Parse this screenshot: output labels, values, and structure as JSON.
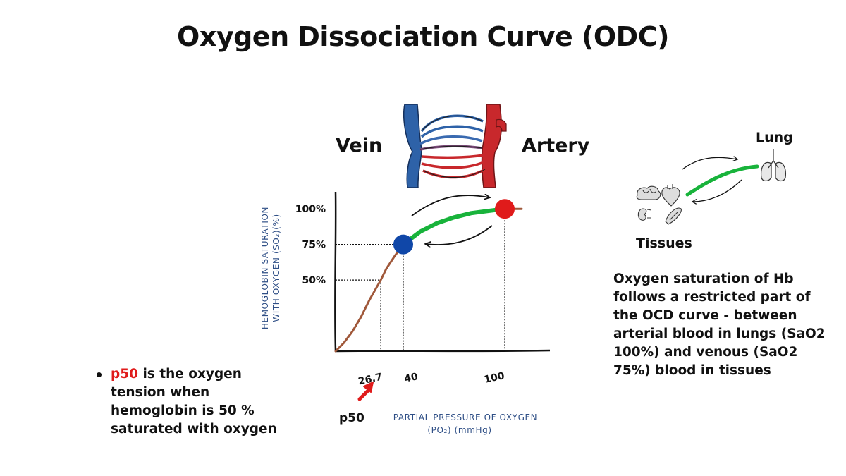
{
  "title": "Oxygen Dissociation Curve (ODC)",
  "labels": {
    "vein": "Vein",
    "artery": "Artery",
    "lung": "Lung",
    "tissues": "Tissues",
    "p50": "p50"
  },
  "explanation": "Oxygen saturation of Hb follows a restricted part of the OCD curve - between arterial blood in lungs  (SaO2 100%) and venous (SaO2 75%) blood in tissues",
  "bullet": {
    "highlight": "p50",
    "text": " is the oxygen tension when hemoglobin is 50 % saturated with oxygen"
  },
  "colors": {
    "curve": "#a0583a",
    "restricted_segment": "#18b33b",
    "venous_point": "#1047a8",
    "arterial_point": "#e01b1b",
    "axis_title": "#2f4f86",
    "p50_arrow": "#e01b1b",
    "vein_blue": "#2e62a8",
    "artery_red": "#c8282c"
  },
  "chart_data": {
    "type": "line",
    "title": "",
    "xlabel_line1": "PARTIAL PRESSURE OF OXYGEN",
    "xlabel_line2": "(PO₂) (mmHg)",
    "ylabel_line1": "HEMOGLOBIN SATURATION",
    "ylabel_line2": "WITH OXYGEN (SO₂)(%)",
    "x_ticks": [
      {
        "value": 26.7,
        "label": "26.7"
      },
      {
        "value": 40,
        "label": "40"
      },
      {
        "value": 100,
        "label": "100"
      }
    ],
    "y_ticks": [
      {
        "value": 50,
        "label": "50%"
      },
      {
        "value": 75,
        "label": "75%"
      },
      {
        "value": 100,
        "label": "100%"
      }
    ],
    "xlim": [
      0,
      125
    ],
    "ylim": [
      0,
      112
    ],
    "series": [
      {
        "x": [
          0,
          5,
          10,
          15,
          20,
          26.7,
          30,
          35,
          40,
          50,
          60,
          70,
          80,
          90,
          100,
          110
        ],
        "y": [
          0,
          6,
          14,
          24,
          36,
          50,
          58,
          67,
          75,
          84,
          90,
          94,
          97,
          98.5,
          100,
          100
        ]
      }
    ],
    "restricted_range": {
      "x": [
        40,
        100
      ],
      "y": [
        75,
        100
      ]
    },
    "points": [
      {
        "name": "venous",
        "x": 40,
        "y": 75
      },
      {
        "name": "arterial",
        "x": 100,
        "y": 100
      }
    ],
    "grid": false
  }
}
